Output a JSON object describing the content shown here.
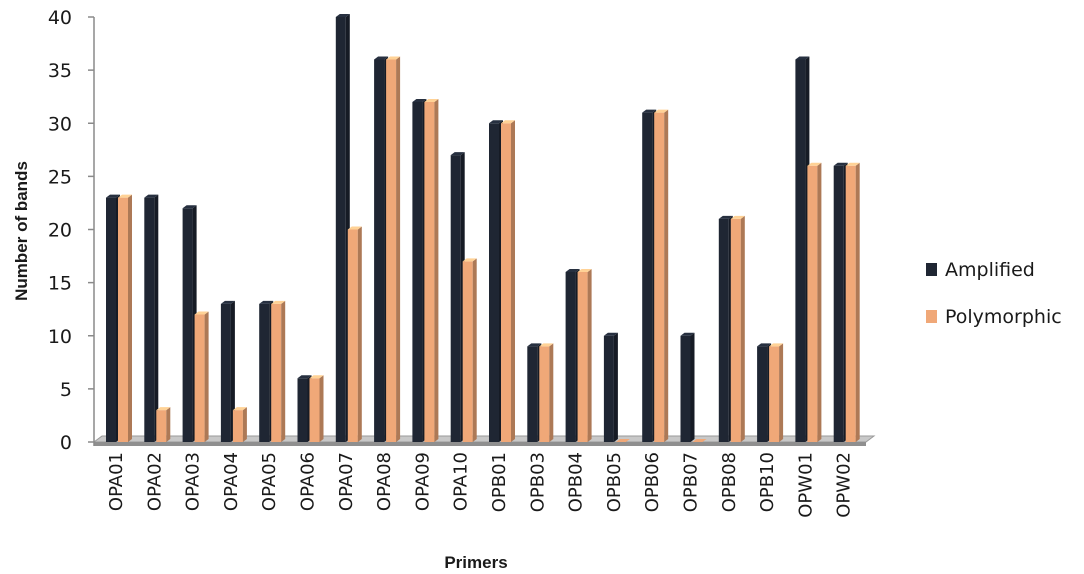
{
  "chart_data": {
    "type": "bar",
    "title": "",
    "xlabel": "Primers",
    "ylabel": "Number of bands",
    "ylim": [
      0,
      40
    ],
    "yticks": [
      0,
      5,
      10,
      15,
      20,
      25,
      30,
      35,
      40
    ],
    "grid": false,
    "legend_position": "right",
    "categories": [
      "OPA01",
      "OPA02",
      "OPA03",
      "OPA04",
      "OPA05",
      "OPA06",
      "OPA07",
      "OPA08",
      "OPA09",
      "OPA10",
      "OPB01",
      "OPB03",
      "OPB04",
      "OPB05",
      "OPB06",
      "OPB07",
      "OPB08",
      "OPB10",
      "OPW01",
      "OPW02"
    ],
    "series": [
      {
        "name": "Amplified",
        "color": "#1f2633",
        "values": [
          23,
          23,
          22,
          13,
          13,
          6,
          40,
          36,
          32,
          27,
          30,
          9,
          16,
          10,
          31,
          10,
          21,
          9,
          36,
          26
        ]
      },
      {
        "name": "Polymorphic",
        "color": "#f0a878",
        "values": [
          23,
          3,
          12,
          3,
          13,
          6,
          20,
          36,
          32,
          17,
          30,
          9,
          16,
          0,
          31,
          0,
          21,
          9,
          26,
          26
        ]
      }
    ]
  }
}
